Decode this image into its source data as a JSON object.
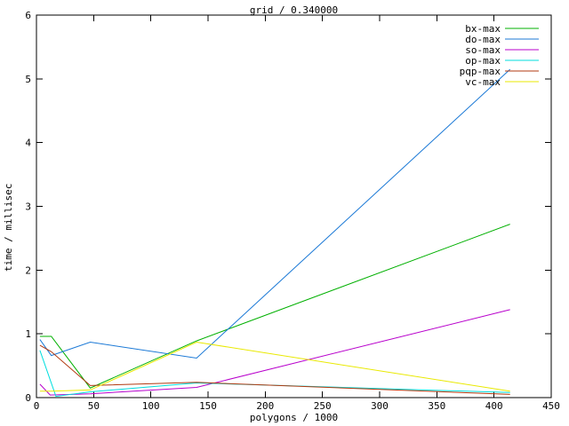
{
  "chart_data": {
    "type": "line",
    "title": "grid / 0.340000",
    "xlabel": "polygons / 1000",
    "ylabel": "time / millisec",
    "xlim": [
      0,
      450
    ],
    "ylim": [
      0,
      6
    ],
    "xticks": [
      0,
      50,
      100,
      150,
      200,
      250,
      300,
      350,
      400,
      450
    ],
    "yticks": [
      0,
      1,
      2,
      3,
      4,
      5,
      6
    ],
    "grid": false,
    "legend_position": "top-right-inside",
    "background_color": "#ffffff",
    "axis_color": "#000000",
    "text_color": "#000000",
    "series": [
      {
        "name": "bx-max",
        "color": "#00b000",
        "points": [
          [
            3,
            0.96
          ],
          [
            13,
            0.96
          ],
          [
            47,
            0.15
          ],
          [
            140,
            0.89
          ],
          [
            414,
            2.72
          ]
        ]
      },
      {
        "name": "do-max",
        "color": "#1b79d6",
        "points": [
          [
            3,
            0.91
          ],
          [
            13,
            0.66
          ],
          [
            47,
            0.87
          ],
          [
            140,
            0.62
          ],
          [
            414,
            5.15
          ]
        ]
      },
      {
        "name": "so-max",
        "color": "#b800cc",
        "points": [
          [
            3,
            0.21
          ],
          [
            12,
            0.04
          ],
          [
            47,
            0.06
          ],
          [
            140,
            0.16
          ],
          [
            414,
            1.38
          ]
        ]
      },
      {
        "name": "op-max",
        "color": "#00dede",
        "points": [
          [
            3,
            0.74
          ],
          [
            17,
            0.02
          ],
          [
            47,
            0.09
          ],
          [
            140,
            0.23
          ],
          [
            414,
            0.08
          ]
        ]
      },
      {
        "name": "pqp-max",
        "color": "#b23910",
        "points": [
          [
            3,
            0.82
          ],
          [
            13,
            0.72
          ],
          [
            47,
            0.19
          ],
          [
            140,
            0.24
          ],
          [
            414,
            0.05
          ]
        ]
      },
      {
        "name": "vc-max",
        "color": "#e9e900",
        "points": [
          [
            3,
            0.1
          ],
          [
            13,
            0.1
          ],
          [
            47,
            0.12
          ],
          [
            140,
            0.87
          ],
          [
            414,
            0.1
          ]
        ]
      }
    ]
  }
}
